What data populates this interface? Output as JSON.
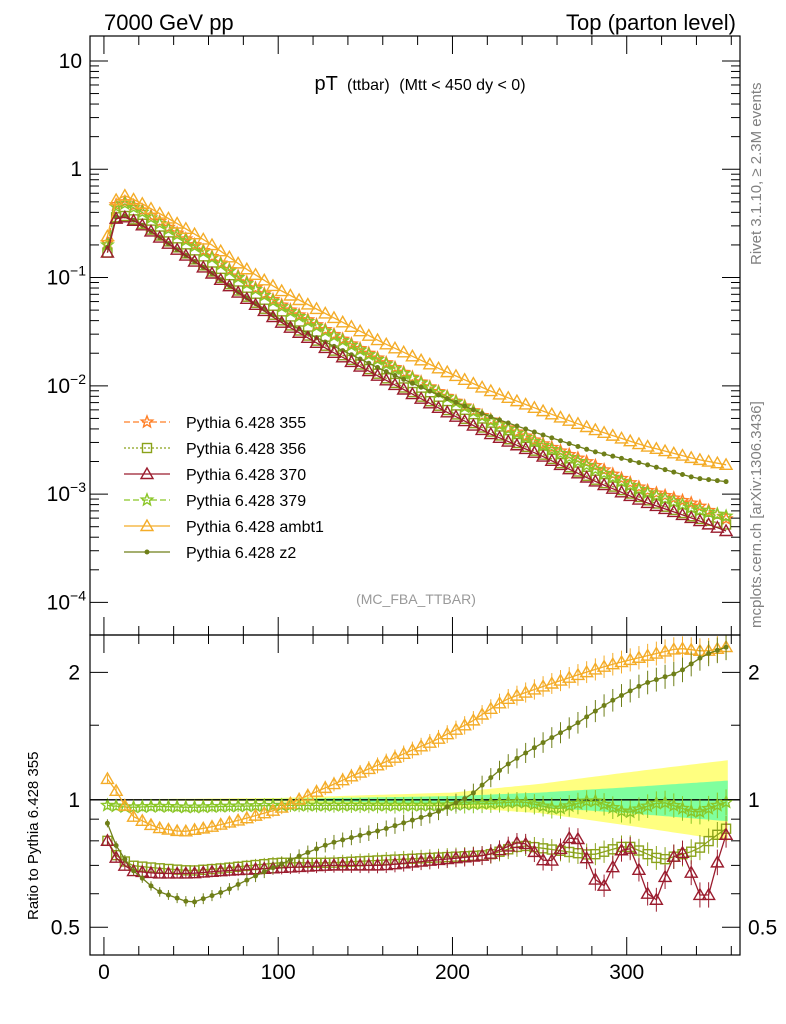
{
  "header": {
    "left": "7000 GeV pp",
    "right": "Top (parton level)"
  },
  "side": {
    "rivet": "Rivet 3.1.10, ≥ 2.3M events",
    "mcplots": "mcplots.cern.ch [arXiv:1306.3436]"
  },
  "analysis": "(MC_FBA_TTBAR)",
  "chart_data": [
    {
      "type": "line",
      "title": "pT (ttbar) (Mtt < 450 dy < 0)",
      "title_parts": {
        "main": "pT",
        "sub": "(ttbar)",
        "cond": "(Mtt < 450 dy < 0)"
      },
      "yscale": "log",
      "xlim": [
        -8,
        365
      ],
      "ylim": [
        5e-05,
        17
      ],
      "xticks": [
        0,
        100,
        200,
        300
      ],
      "yticks": [
        {
          "v": 10,
          "label": "10"
        },
        {
          "v": 1,
          "label": "1"
        },
        {
          "v": 0.1,
          "label": "10",
          "exp": "−1"
        },
        {
          "v": 0.01,
          "label": "10",
          "exp": "−2"
        },
        {
          "v": 0.001,
          "label": "10",
          "exp": "−3"
        },
        {
          "v": 0.0001,
          "label": "10",
          "exp": "−4"
        }
      ],
      "legend_position": "bottom-left",
      "series": [
        {
          "name": "Pythia 6.428 355",
          "color": "#ff7f26",
          "dash": "6,3",
          "marker": "star",
          "points": [
            [
              2,
              0.21
            ],
            [
              7,
              0.47
            ],
            [
              12,
              0.5
            ],
            [
              20,
              0.44
            ],
            [
              40,
              0.27
            ],
            [
              60,
              0.165
            ],
            [
              80,
              0.095
            ],
            [
              100,
              0.058
            ],
            [
              130,
              0.031
            ],
            [
              160,
              0.017
            ],
            [
              190,
              0.0092
            ],
            [
              220,
              0.005
            ],
            [
              250,
              0.003
            ],
            [
              280,
              0.0019
            ],
            [
              310,
              0.0011
            ],
            [
              340,
              0.0008
            ],
            [
              358,
              0.00058
            ]
          ]
        },
        {
          "name": "Pythia 6.428 356",
          "color": "#8aa21a",
          "dash": "2,2",
          "marker": "square",
          "points": [
            [
              2,
              0.17
            ],
            [
              7,
              0.36
            ],
            [
              12,
              0.37
            ],
            [
              20,
              0.33
            ],
            [
              40,
              0.2
            ],
            [
              60,
              0.12
            ],
            [
              80,
              0.07
            ],
            [
              100,
              0.042
            ],
            [
              130,
              0.022
            ],
            [
              160,
              0.0122
            ],
            [
              190,
              0.0068
            ],
            [
              220,
              0.0039
            ],
            [
              250,
              0.0024
            ],
            [
              280,
              0.0014
            ],
            [
              310,
              0.0009
            ],
            [
              340,
              0.0006
            ],
            [
              358,
              0.00052
            ]
          ]
        },
        {
          "name": "Pythia 6.428 370",
          "color": "#9b1c2e",
          "dash": "",
          "marker": "triangle",
          "points": [
            [
              2,
              0.17
            ],
            [
              7,
              0.35
            ],
            [
              12,
              0.36
            ],
            [
              20,
              0.32
            ],
            [
              40,
              0.19
            ],
            [
              60,
              0.115
            ],
            [
              80,
              0.067
            ],
            [
              100,
              0.04
            ],
            [
              130,
              0.021
            ],
            [
              160,
              0.0117
            ],
            [
              190,
              0.0065
            ],
            [
              220,
              0.0037
            ],
            [
              250,
              0.0023
            ],
            [
              280,
              0.00135
            ],
            [
              310,
              0.00085
            ],
            [
              340,
              0.00058
            ],
            [
              358,
              0.00045
            ]
          ]
        },
        {
          "name": "Pythia 6.428 379",
          "color": "#8ac627",
          "dash": "6,3",
          "marker": "star",
          "points": [
            [
              2,
              0.2
            ],
            [
              7,
              0.45
            ],
            [
              12,
              0.48
            ],
            [
              20,
              0.42
            ],
            [
              40,
              0.26
            ],
            [
              60,
              0.16
            ],
            [
              80,
              0.092
            ],
            [
              100,
              0.056
            ],
            [
              130,
              0.03
            ],
            [
              160,
              0.0165
            ],
            [
              190,
              0.009
            ],
            [
              220,
              0.0049
            ],
            [
              250,
              0.0029
            ],
            [
              280,
              0.00175
            ],
            [
              310,
              0.00105
            ],
            [
              340,
              0.00072
            ],
            [
              358,
              0.00062
            ]
          ]
        },
        {
          "name": "Pythia 6.428 ambt1",
          "color": "#f4ac28",
          "dash": "",
          "marker": "triangle",
          "points": [
            [
              2,
              0.24
            ],
            [
              7,
              0.52
            ],
            [
              12,
              0.57
            ],
            [
              20,
              0.5
            ],
            [
              40,
              0.33
            ],
            [
              60,
              0.21
            ],
            [
              80,
              0.125
            ],
            [
              100,
              0.078
            ],
            [
              130,
              0.044
            ],
            [
              160,
              0.025
            ],
            [
              190,
              0.015
            ],
            [
              220,
              0.0092
            ],
            [
              250,
              0.006
            ],
            [
              280,
              0.004
            ],
            [
              310,
              0.0028
            ],
            [
              340,
              0.0021
            ],
            [
              358,
              0.00185
            ]
          ]
        },
        {
          "name": "Pythia 6.428 z2",
          "color": "#6f7f19",
          "dash": "",
          "marker": "dot",
          "points": [
            [
              2,
              0.19
            ],
            [
              7,
              0.36
            ],
            [
              12,
              0.37
            ],
            [
              20,
              0.32
            ],
            [
              40,
              0.19
            ],
            [
              60,
              0.115
            ],
            [
              80,
              0.068
            ],
            [
              100,
              0.042
            ],
            [
              130,
              0.024
            ],
            [
              160,
              0.014
            ],
            [
              190,
              0.0085
            ],
            [
              220,
              0.0053
            ],
            [
              250,
              0.0036
            ],
            [
              280,
              0.0025
            ],
            [
              310,
              0.0019
            ],
            [
              340,
              0.0014
            ],
            [
              358,
              0.0013
            ]
          ]
        }
      ]
    },
    {
      "type": "line",
      "ylabel": "Ratio to Pythia 6.428 355",
      "yscale": "log",
      "xlim": [
        -8,
        365
      ],
      "ylim": [
        0.43,
        2.45
      ],
      "xticks": [
        0,
        100,
        200,
        300
      ],
      "yticks": [
        0.5,
        1,
        2
      ],
      "bands": {
        "yellow": {
          "x": [
            0,
            100,
            200,
            250,
            300,
            358
          ],
          "lo": [
            0.998,
            0.99,
            0.96,
            0.93,
            0.87,
            0.8
          ],
          "hi": [
            1.002,
            1.01,
            1.04,
            1.09,
            1.16,
            1.24
          ],
          "color": "#ffff80"
        },
        "green": {
          "x": [
            0,
            100,
            200,
            250,
            300,
            358
          ],
          "lo": [
            0.999,
            0.995,
            0.98,
            0.96,
            0.93,
            0.89
          ],
          "hi": [
            1.001,
            1.005,
            1.02,
            1.04,
            1.07,
            1.11
          ],
          "color": "#80ff9e"
        }
      },
      "series": [
        {
          "name": "Pythia 6.428 356",
          "color": "#8aa21a",
          "marker": "square",
          "points": [
            [
              2,
              0.8
            ],
            [
              7,
              0.74
            ],
            [
              15,
              0.7
            ],
            [
              30,
              0.69
            ],
            [
              50,
              0.68
            ],
            [
              70,
              0.69
            ],
            [
              100,
              0.71
            ],
            [
              130,
              0.71
            ],
            [
              160,
              0.72
            ],
            [
              190,
              0.73
            ],
            [
              220,
              0.74
            ],
            [
              240,
              0.78
            ],
            [
              260,
              0.76
            ],
            [
              280,
              0.74
            ],
            [
              300,
              0.78
            ],
            [
              320,
              0.72
            ],
            [
              340,
              0.76
            ],
            [
              358,
              0.86
            ]
          ]
        },
        {
          "name": "Pythia 6.428 370",
          "color": "#9b1c2e",
          "marker": "triangle",
          "points": [
            [
              2,
              0.8
            ],
            [
              7,
              0.73
            ],
            [
              15,
              0.68
            ],
            [
              30,
              0.67
            ],
            [
              50,
              0.67
            ],
            [
              70,
              0.68
            ],
            [
              100,
              0.69
            ],
            [
              130,
              0.7
            ],
            [
              160,
              0.7
            ],
            [
              190,
              0.72
            ],
            [
              220,
              0.74
            ],
            [
              240,
              0.8
            ],
            [
              255,
              0.7
            ],
            [
              270,
              0.84
            ],
            [
              285,
              0.6
            ],
            [
              300,
              0.8
            ],
            [
              315,
              0.55
            ],
            [
              330,
              0.78
            ],
            [
              345,
              0.55
            ],
            [
              358,
              0.85
            ]
          ]
        },
        {
          "name": "Pythia 6.428 379",
          "color": "#8ac627",
          "marker": "star",
          "points": [
            [
              2,
              0.97
            ],
            [
              15,
              0.96
            ],
            [
              30,
              0.965
            ],
            [
              50,
              0.96
            ],
            [
              70,
              0.965
            ],
            [
              100,
              0.97
            ],
            [
              130,
              0.97
            ],
            [
              160,
              0.97
            ],
            [
              190,
              0.97
            ],
            [
              220,
              0.98
            ],
            [
              240,
              0.99
            ],
            [
              260,
              0.95
            ],
            [
              280,
              1.0
            ],
            [
              300,
              0.93
            ],
            [
              320,
              0.99
            ],
            [
              340,
              0.93
            ],
            [
              358,
              0.99
            ]
          ]
        },
        {
          "name": "Pythia 6.428 ambt1",
          "color": "#f4ac28",
          "marker": "triangle",
          "points": [
            [
              2,
              1.12
            ],
            [
              7,
              1.05
            ],
            [
              15,
              0.92
            ],
            [
              30,
              0.86
            ],
            [
              45,
              0.84
            ],
            [
              60,
              0.86
            ],
            [
              80,
              0.9
            ],
            [
              100,
              0.95
            ],
            [
              130,
              1.08
            ],
            [
              160,
              1.22
            ],
            [
              190,
              1.38
            ],
            [
              210,
              1.52
            ],
            [
              230,
              1.72
            ],
            [
              250,
              1.84
            ],
            [
              270,
              1.96
            ],
            [
              290,
              2.08
            ],
            [
              310,
              2.18
            ],
            [
              330,
              2.28
            ],
            [
              345,
              2.24
            ],
            [
              358,
              2.3
            ]
          ]
        },
        {
          "name": "Pythia 6.428 z2",
          "color": "#6f7f19",
          "marker": "dot",
          "points": [
            [
              2,
              0.88
            ],
            [
              7,
              0.78
            ],
            [
              15,
              0.69
            ],
            [
              30,
              0.61
            ],
            [
              50,
              0.57
            ],
            [
              70,
              0.61
            ],
            [
              100,
              0.7
            ],
            [
              130,
              0.79
            ],
            [
              160,
              0.85
            ],
            [
              190,
              0.93
            ],
            [
              210,
              1.02
            ],
            [
              230,
              1.2
            ],
            [
              250,
              1.35
            ],
            [
              270,
              1.5
            ],
            [
              290,
              1.7
            ],
            [
              310,
              1.88
            ],
            [
              330,
              2.0
            ],
            [
              345,
              2.2
            ],
            [
              358,
              2.3
            ]
          ]
        }
      ]
    }
  ]
}
